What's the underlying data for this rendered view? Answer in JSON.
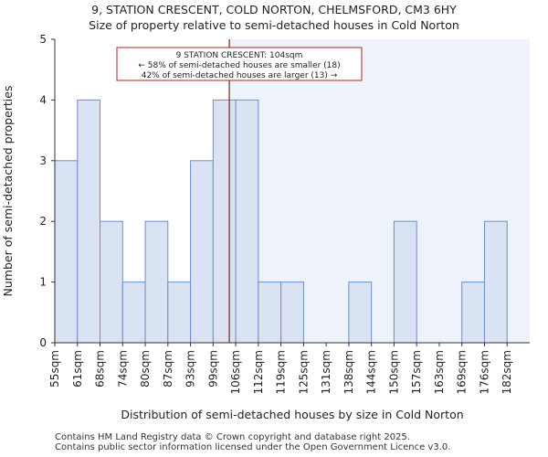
{
  "title": "9, STATION CRESCENT, COLD NORTON, CHELMSFORD, CM3 6HY",
  "subtitle": "Size of property relative to semi-detached houses in Cold Norton",
  "footer_line1": "Contains HM Land Registry data © Crown copyright and database right 2025.",
  "footer_line2": "Contains public sector information licensed under the Open Government Licence v3.0.",
  "chart_data": {
    "type": "bar",
    "xlabel": "Distribution of semi-detached houses by size in Cold Norton",
    "ylabel": "Number of semi-detached properties",
    "categories": [
      "55sqm",
      "61sqm",
      "68sqm",
      "74sqm",
      "80sqm",
      "87sqm",
      "93sqm",
      "99sqm",
      "106sqm",
      "112sqm",
      "119sqm",
      "125sqm",
      "131sqm",
      "138sqm",
      "144sqm",
      "150sqm",
      "157sqm",
      "163sqm",
      "169sqm",
      "176sqm",
      "182sqm"
    ],
    "values": [
      3,
      4,
      2,
      1,
      2,
      1,
      3,
      4,
      4,
      1,
      1,
      0,
      0,
      1,
      0,
      2,
      0,
      0,
      1,
      2,
      0
    ],
    "ylim": [
      0,
      5
    ],
    "yticks": [
      0,
      1,
      2,
      3,
      4,
      5
    ],
    "marker_value_sqm": 104,
    "annotation": {
      "line1": "9 STATION CRESCENT: 104sqm",
      "line2": "← 58% of semi-detached houses are smaller (18)",
      "line3": "42% of semi-detached houses are larger (13) →"
    },
    "colors": {
      "bar_fill": "#dae3f3",
      "bar_stroke": "#6f8fc7",
      "highlight_bg": "#eef2fb",
      "marker": "#8b1a1a",
      "annotation_border": "#b22222"
    }
  }
}
